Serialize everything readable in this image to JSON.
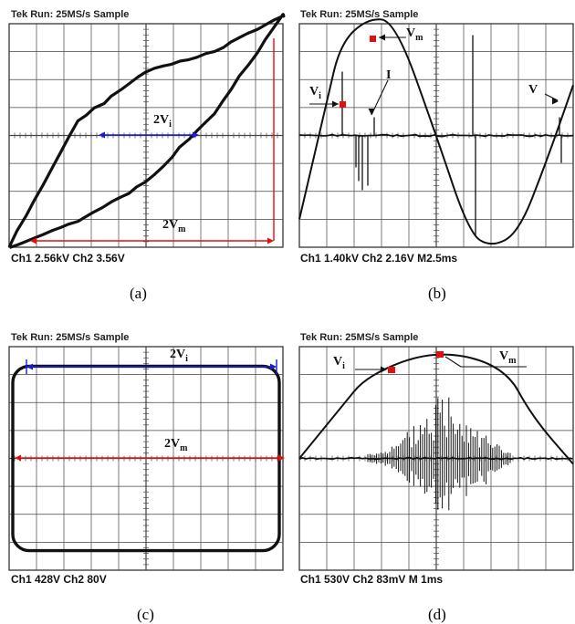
{
  "figure": {
    "panels": [
      {
        "id": "a",
        "header": "Tek Run: 25MS/s Sample",
        "footer": "Ch1 2.56kV Ch2 3.56V",
        "caption": "(a)",
        "annotations": [
          {
            "main": "2V",
            "sub": "i"
          },
          {
            "main": "2V",
            "sub": "m"
          }
        ]
      },
      {
        "id": "b",
        "header": "Tek Run: 25MS/s Sample",
        "footer": "Ch1 1.40kV Ch2 2.16V M2.5ms",
        "caption": "(b)",
        "annotations": [
          {
            "main": "V",
            "sub": "m"
          },
          {
            "main": "V",
            "sub": "i"
          },
          {
            "main": "I",
            "sub": ""
          },
          {
            "main": "V",
            "sub": ""
          }
        ]
      },
      {
        "id": "c",
        "header": "Tek Run: 25MS/s Sample",
        "footer": "Ch1 428V Ch2 80V",
        "caption": "(c)",
        "annotations": [
          {
            "main": "2V",
            "sub": "i"
          },
          {
            "main": "2V",
            "sub": "m"
          }
        ]
      },
      {
        "id": "d",
        "header": "Tek Run: 25MS/s Sample",
        "footer": "Ch1 530V Ch2 83mV M 1ms",
        "caption": "(d)",
        "annotations": [
          {
            "main": "V",
            "sub": "i"
          },
          {
            "main": "V",
            "sub": "m"
          }
        ]
      }
    ]
  },
  "chart_data": [
    {
      "type": "line",
      "panel": "a",
      "description_free": true,
      "series": [
        {
          "values": [
            [
              -5,
              -4.0
            ],
            [
              -2.5,
              0.5
            ],
            [
              0,
              2.3
            ],
            [
              2.5,
              3.0
            ],
            [
              5,
              4.3
            ],
            [
              5,
              4.3
            ],
            [
              2.5,
              0.8
            ],
            [
              0,
              -1.7
            ],
            [
              -2.5,
              -3.1
            ],
            [
              -5,
              -4.0
            ]
          ]
        }
      ],
      "xlim": [
        -5,
        5
      ],
      "ylim": [
        -4,
        4
      ],
      "grid": true
    },
    {
      "type": "line",
      "panel": "b",
      "series": [
        {
          "values": [
            [
              -5,
              -3.0
            ],
            [
              -4,
              1.2
            ],
            [
              -3.5,
              3.3
            ],
            [
              -2.5,
              4.2
            ],
            [
              -1.5,
              4.1
            ],
            [
              0,
              0
            ],
            [
              1.2,
              -3.5
            ],
            [
              2,
              -4.0
            ],
            [
              3,
              -3.5
            ],
            [
              4,
              -1.0
            ],
            [
              5,
              1.8
            ]
          ]
        },
        {
          "values": [
            [
              -5,
              0
            ],
            [
              5,
              0
            ]
          ]
        }
      ],
      "xlim": [
        -5,
        5
      ],
      "ylim": [
        -4,
        4
      ],
      "grid": true
    },
    {
      "type": "line",
      "panel": "c",
      "series": [
        {
          "values": [
            [
              -5,
              3.3
            ],
            [
              5,
              3.3
            ],
            [
              5,
              -3.3
            ],
            [
              -5,
              -3.3
            ],
            [
              -5,
              3.3
            ]
          ]
        }
      ],
      "xlim": [
        -5,
        5
      ],
      "ylim": [
        -4,
        4
      ],
      "grid": true
    },
    {
      "type": "line",
      "panel": "d",
      "series": [
        {
          "values": [
            [
              -5,
              0
            ],
            [
              -3.5,
              1.8
            ],
            [
              -2.5,
              3.0
            ],
            [
              0,
              3.9
            ],
            [
              2.5,
              3.3
            ],
            [
              3.5,
              1.5
            ],
            [
              5,
              -0.2
            ]
          ]
        },
        {
          "values": [
            [
              -5,
              0
            ],
            [
              5,
              0
            ]
          ]
        }
      ],
      "xlim": [
        -5,
        5
      ],
      "ylim": [
        -4,
        4
      ],
      "grid": true
    }
  ],
  "colors": {
    "grid": "#444444",
    "trace": "#111111",
    "blue_arrow": "#1a1ad8",
    "red_arrow": "#e01010",
    "marker": "#e01010"
  }
}
